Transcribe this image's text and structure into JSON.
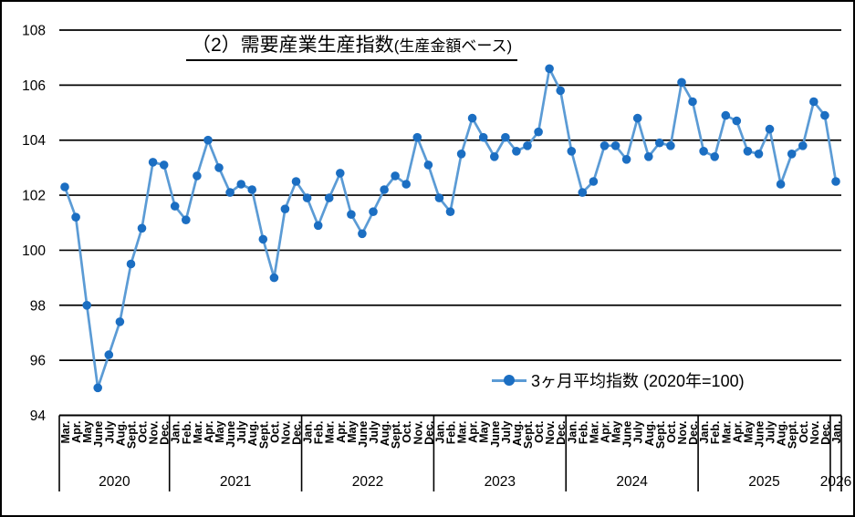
{
  "chart_data": {
    "type": "line",
    "title_main": "（2）需要産業生産指数",
    "title_sub": "(生産金額ベース)",
    "legend": "3ヶ月平均指数 (2020年=100)",
    "ylabel": "",
    "xlabel": "",
    "ylim": [
      94,
      108
    ],
    "yticks": [
      108,
      106,
      104,
      102,
      100,
      98,
      96,
      94
    ],
    "grid": "horizontal",
    "legend_position": "inside-bottom-right",
    "line_color": "#5b9bd5",
    "marker_color": "#1b6ec2",
    "groups": [
      {
        "year": "2020",
        "months": [
          "Mar.",
          "Apr.",
          "May",
          "June",
          "July",
          "Aug.",
          "Sept.",
          "Oct.",
          "Nov.",
          "Dec."
        ]
      },
      {
        "year": "2021",
        "months": [
          "Jan.",
          "Feb.",
          "Mar.",
          "Apr.",
          "May",
          "June",
          "July",
          "Aug.",
          "Sept.",
          "Oct.",
          "Nov.",
          "Dec."
        ]
      },
      {
        "year": "2022",
        "months": [
          "Jan.",
          "Feb.",
          "Mar.",
          "Apr.",
          "May",
          "June",
          "July",
          "Aug.",
          "Sept.",
          "Oct.",
          "Nov.",
          "Dec."
        ]
      },
      {
        "year": "2023",
        "months": [
          "Jan.",
          "Feb.",
          "Mar.",
          "Apr.",
          "May",
          "June",
          "July",
          "Aug.",
          "Sept.",
          "Oct.",
          "Nov.",
          "Dec."
        ]
      },
      {
        "year": "2024",
        "months": [
          "Jan.",
          "Feb.",
          "Mar.",
          "Apr.",
          "May",
          "June",
          "July",
          "Aug.",
          "Sept.",
          "Oct.",
          "Nov.",
          "Dec."
        ]
      },
      {
        "year": "2025",
        "months": [
          "Jan.",
          "Feb.",
          "Mar.",
          "Apr.",
          "May",
          "June",
          "July",
          "Aug.",
          "Sept.",
          "Oct.",
          "Nov.",
          "Dec."
        ]
      },
      {
        "year": "2026",
        "months": [
          "Jan."
        ]
      }
    ],
    "series": [
      {
        "name": "3ヶ月平均指数 (2020年=100)",
        "values": [
          102.3,
          101.2,
          98.0,
          95.0,
          96.2,
          97.4,
          99.5,
          100.8,
          103.2,
          103.1,
          101.6,
          101.1,
          102.7,
          104.0,
          103.0,
          102.1,
          102.4,
          102.2,
          100.4,
          99.0,
          101.5,
          102.5,
          101.9,
          100.9,
          101.9,
          102.8,
          101.3,
          100.6,
          101.4,
          102.2,
          102.7,
          102.4,
          104.1,
          103.1,
          101.9,
          101.4,
          103.5,
          104.8,
          104.1,
          103.4,
          104.1,
          103.6,
          103.8,
          104.3,
          106.6,
          105.8,
          103.6,
          102.1,
          102.5,
          103.8,
          103.8,
          103.3,
          104.8,
          103.4,
          103.9,
          103.8,
          106.1,
          105.4,
          103.6,
          103.4,
          104.9,
          104.7,
          103.6,
          103.5,
          104.4,
          102.4,
          103.5,
          103.8,
          105.4,
          104.9,
          102.5
        ]
      }
    ]
  }
}
